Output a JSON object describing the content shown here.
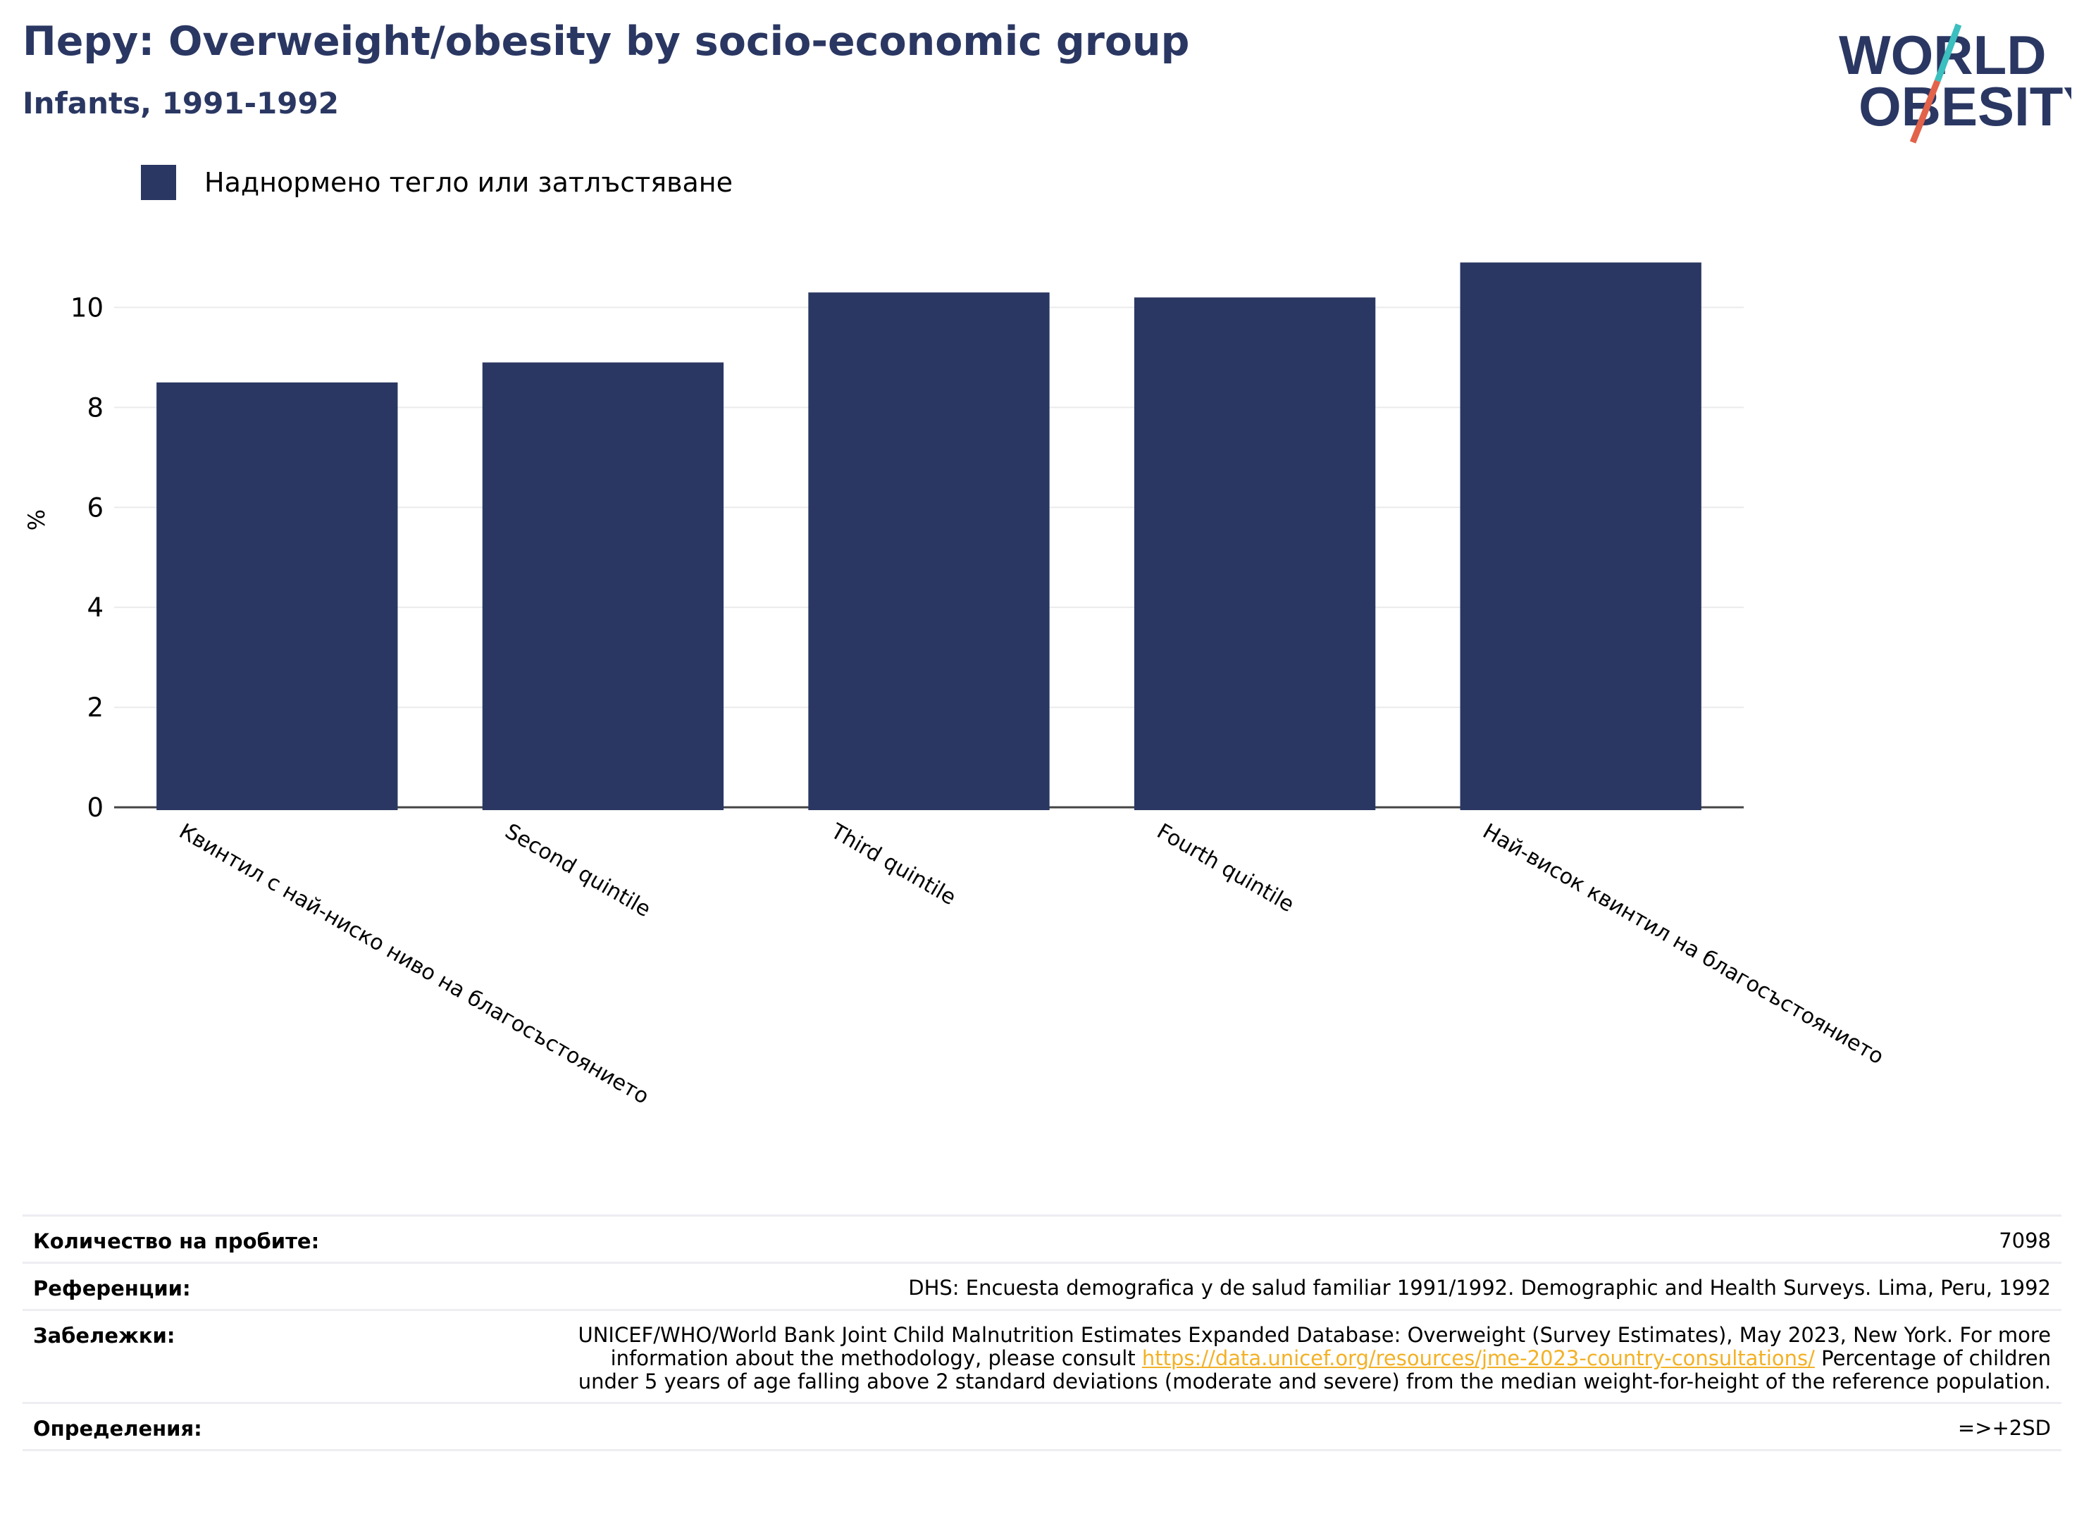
{
  "header": {
    "title": "Перу: Overweight/obesity by socio-economic group",
    "subtitle": "Infants, 1991-1992"
  },
  "logo": {
    "line1": "WORLD",
    "line2": "OBESITY",
    "colors": {
      "text": "#2a3762",
      "slash_top": "#3bbfbf",
      "slash_bottom": "#e2624a"
    }
  },
  "legend": {
    "label": "Наднормено тегло или затлъстяване",
    "color": "#2a3762"
  },
  "chart_data": {
    "type": "bar",
    "categories": [
      "Квинтил с най-ниско ниво на благосъстоянието",
      "Second quintile",
      "Third quintile",
      "Fourth quintile",
      "Най-висок квинтил на благосъстоянието"
    ],
    "series": [
      {
        "name": "Наднормено тегло или затлъстяване",
        "values": [
          8.5,
          8.9,
          10.3,
          10.2,
          10.9
        ],
        "color": "#2a3762"
      }
    ],
    "ylabel": "%",
    "yticks": [
      0,
      2,
      4,
      6,
      8,
      10
    ],
    "ylim": [
      0,
      11.5
    ],
    "grid": true,
    "legend_position": "top-left"
  },
  "footer": {
    "rows": [
      {
        "label": "Количество на пробите:",
        "value": "7098"
      },
      {
        "label": "Референции:",
        "value": "DHS: Encuesta demografica y de salud familiar 1991/1992. Demographic and Health Surveys. Lima, Peru, 1992"
      },
      {
        "label": "Забележки:",
        "value_before": "UNICEF/WHO/World Bank Joint Child Malnutrition Estimates Expanded Database: Overweight (Survey Estimates), May 2023, New York. For more information about the methodology, please consult ",
        "link": "https://data.unicef.org/resources/jme-2023-country-consultations/",
        "value_after": " Percentage of children under 5 years of age falling above 2 standard deviations (moderate and severe) from the median weight-for-height of the reference population."
      },
      {
        "label": "Определения:",
        "value": "=>+2SD"
      }
    ]
  }
}
